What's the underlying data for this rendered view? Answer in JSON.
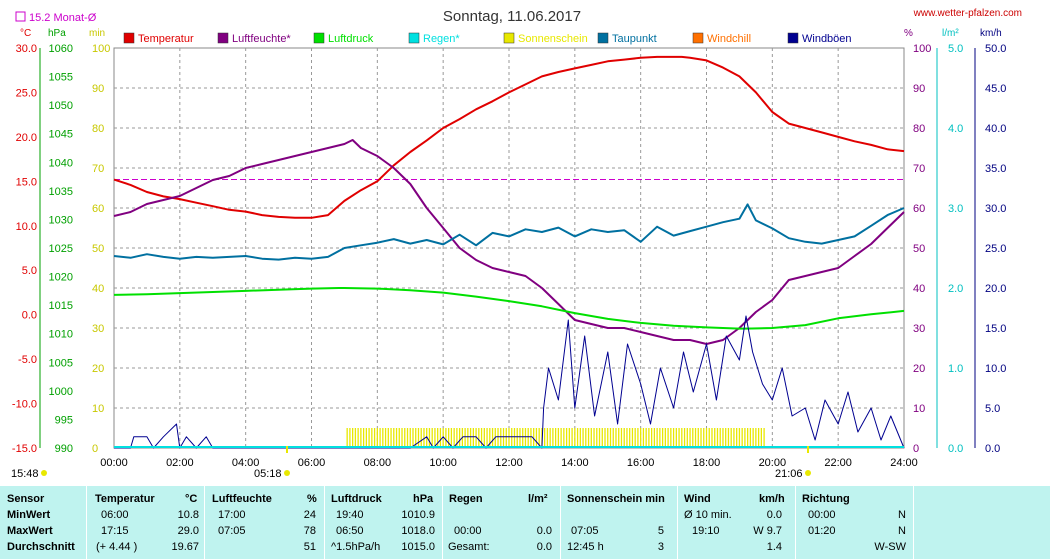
{
  "header": {
    "title": "Sonntag, 11.06.2017",
    "site": "www.wetter-pfalzen.com",
    "monthly_avg_label": "15.2 Monat-Ø"
  },
  "axis_units": {
    "temp": "°C",
    "pressure": "hPa",
    "sun": "min",
    "hum": "%",
    "rain": "l/m²",
    "wind": "km/h"
  },
  "legend": [
    {
      "name": "Temperatur",
      "color": "#e00000"
    },
    {
      "name": "Luftfeuchte*",
      "color": "#800080"
    },
    {
      "name": "Luftdruck",
      "color": "#00e000"
    },
    {
      "name": "Regen*",
      "color": "#00e0e0"
    },
    {
      "name": "Sonnenschein",
      "color": "#e8e800"
    },
    {
      "name": "Taupunkt",
      "color": "#0070a0"
    },
    {
      "name": "Windchill",
      "color": "#ff7000"
    },
    {
      "name": "Windböen",
      "color": "#000090"
    }
  ],
  "sun_events": {
    "left": "15:48",
    "sunrise": "05:18",
    "sunset": "21:06",
    "left_color": "#e8e800",
    "sunrise_color": "#e8e800",
    "sunset_color": "#e8e800"
  },
  "chart_data": {
    "type": "line",
    "x_tick_labels": [
      "00:00",
      "02:00",
      "04:00",
      "06:00",
      "08:00",
      "10:00",
      "12:00",
      "14:00",
      "16:00",
      "18:00",
      "20:00",
      "22:00",
      "24:00"
    ],
    "x_range_hours": [
      0,
      24
    ],
    "axes": {
      "temp": {
        "ticks": [
          "30.0",
          "25.0",
          "20.0",
          "15.0",
          "10.0",
          "5.0",
          "0.0",
          "-5.0",
          "-10.0",
          "-15.0"
        ],
        "range": [
          -15,
          30
        ],
        "color": "#e00000"
      },
      "pressure": {
        "ticks": [
          "1060",
          "1055",
          "1050",
          "1045",
          "1040",
          "1035",
          "1030",
          "1025",
          "1020",
          "1015",
          "1010",
          "1005",
          "1000",
          "995",
          "990"
        ],
        "range": [
          990,
          1060
        ],
        "color": "#00a000"
      },
      "sun": {
        "ticks": [
          "100",
          "90",
          "80",
          "70",
          "60",
          "50",
          "40",
          "30",
          "20",
          "10",
          "0"
        ],
        "range": [
          0,
          100
        ],
        "color": "#c8c800"
      },
      "hum": {
        "ticks": [
          "100",
          "90",
          "80",
          "70",
          "60",
          "50",
          "40",
          "30",
          "20",
          "10",
          "0"
        ],
        "range": [
          0,
          100
        ],
        "color": "#800080"
      },
      "rain": {
        "ticks": [
          "5.0",
          "4.0",
          "3.0",
          "2.0",
          "1.0",
          "0.0"
        ],
        "range": [
          0,
          5
        ],
        "color": "#00c0c0"
      },
      "wind": {
        "ticks": [
          "50.0",
          "45.0",
          "40.0",
          "35.0",
          "30.0",
          "25.0",
          "20.0",
          "15.0",
          "10.0",
          "5.0",
          "0.0"
        ],
        "range": [
          0,
          50
        ],
        "color": "#000080"
      }
    },
    "monthly_avg_temp": 15.2,
    "series": [
      {
        "name": "Temperatur",
        "axis": "temp",
        "color": "#e00000",
        "x": [
          0,
          0.5,
          1,
          1.5,
          2,
          2.5,
          3,
          3.5,
          4,
          4.5,
          5,
          5.5,
          6,
          6.5,
          7,
          7.5,
          8,
          8.5,
          9,
          9.5,
          10,
          10.5,
          11,
          11.5,
          12,
          12.5,
          13,
          13.5,
          14,
          14.5,
          15,
          15.5,
          16,
          16.5,
          17,
          17.25,
          17.5,
          18,
          18.5,
          19,
          19.5,
          20,
          20.5,
          21,
          21.5,
          22,
          22.5,
          23,
          23.5,
          24
        ],
        "y": [
          15.2,
          14.6,
          13.8,
          13.3,
          13,
          12.6,
          12.2,
          11.8,
          11.6,
          11.2,
          11,
          10.9,
          10.9,
          11.2,
          12.8,
          14,
          15,
          16.8,
          18.3,
          19.6,
          21,
          22,
          23.1,
          24,
          25,
          25.9,
          26.8,
          27.3,
          27.7,
          28.1,
          28.5,
          28.7,
          28.9,
          29,
          29,
          29,
          28.9,
          28.6,
          27.8,
          26.8,
          25,
          22.8,
          21.5,
          21,
          20.5,
          20,
          19.5,
          19.1,
          18.6,
          18.4
        ]
      },
      {
        "name": "Luftfeuchte*",
        "axis": "hum",
        "color": "#800080",
        "x": [
          0,
          0.5,
          1,
          1.5,
          2,
          2.5,
          3,
          3.5,
          4,
          4.5,
          5,
          5.5,
          6,
          6.5,
          7,
          7.25,
          7.5,
          8,
          8.5,
          9,
          9.5,
          10,
          10.5,
          11,
          11.5,
          12,
          12.5,
          13,
          13.5,
          14,
          14.5,
          15,
          15.5,
          16,
          16.5,
          17,
          17.5,
          18,
          18.5,
          19,
          19.5,
          20,
          20.5,
          21,
          21.5,
          22,
          22.5,
          23,
          23.5,
          24
        ],
        "y": [
          58,
          59,
          61,
          62,
          63,
          65,
          67,
          68,
          70,
          71,
          72,
          73,
          74,
          75,
          76,
          77,
          75,
          73,
          70,
          66,
          60,
          55,
          50,
          47,
          45,
          44,
          43,
          40,
          36,
          32,
          31,
          30,
          30,
          29,
          28,
          27,
          27,
          26,
          27,
          30,
          34,
          37,
          42,
          43,
          44,
          45,
          48,
          51,
          55,
          59
        ]
      },
      {
        "name": "Luftdruck",
        "axis": "pressure",
        "color": "#00e000",
        "x": [
          0,
          1,
          2,
          3,
          4,
          5,
          6,
          6.83,
          7,
          8,
          9,
          10,
          11,
          12,
          13,
          14,
          15,
          16,
          17,
          18,
          19,
          19.2,
          20,
          21,
          22,
          23,
          24
        ],
        "y": [
          1016.8,
          1016.9,
          1017.1,
          1017.3,
          1017.5,
          1017.7,
          1017.9,
          1018.0,
          1018.0,
          1017.9,
          1017.6,
          1017.2,
          1016.5,
          1015.7,
          1014.8,
          1013.6,
          1012.6,
          1011.9,
          1011.4,
          1011.1,
          1010.9,
          1010.9,
          1011.0,
          1011.5,
          1012.7,
          1013.4,
          1014.0
        ]
      },
      {
        "name": "Taupunkt",
        "axis": "temp",
        "color": "#0070a0",
        "x": [
          0,
          0.5,
          1,
          1.5,
          2,
          2.5,
          3,
          3.5,
          4,
          4.5,
          5,
          5.5,
          6,
          6.5,
          7,
          7.5,
          8,
          8.5,
          9,
          9.5,
          10,
          10.5,
          11,
          11.5,
          12,
          12.5,
          13,
          13.5,
          14,
          14.5,
          15,
          15.5,
          16,
          16.5,
          17,
          17.5,
          18,
          18.5,
          19,
          19.25,
          19.5,
          20,
          20.5,
          21,
          21.5,
          22,
          22.5,
          23,
          23.5,
          24
        ],
        "y": [
          6.6,
          6.4,
          6.8,
          6.5,
          6.3,
          6.5,
          6.4,
          6.5,
          6.6,
          6.3,
          6.2,
          6.4,
          6.3,
          6.5,
          7.5,
          7.8,
          8.1,
          8.5,
          8.0,
          8.4,
          7.9,
          9.0,
          7.8,
          9.2,
          8.8,
          9.6,
          9.3,
          9.8,
          8.8,
          9.6,
          9.3,
          9.5,
          8.2,
          9.9,
          8.9,
          9.4,
          9.9,
          10.4,
          10.8,
          12.4,
          10.6,
          9.7,
          8.6,
          8.2,
          8.0,
          8.4,
          8.8,
          10.0,
          11.2,
          12.0
        ]
      },
      {
        "name": "Windböen",
        "axis": "wind",
        "color": "#000090",
        "x": [
          0,
          0.5,
          0.6,
          1,
          1.2,
          1.5,
          1.9,
          2,
          2.2,
          2.5,
          2.8,
          3,
          3.5,
          4,
          5,
          6,
          7,
          8,
          9,
          9.5,
          9.7,
          10,
          10.3,
          10.6,
          11,
          11.3,
          11.6,
          12,
          12.3,
          12.7,
          13,
          13.05,
          13.2,
          13.5,
          13.8,
          14,
          14.3,
          14.6,
          15,
          15.3,
          15.6,
          16,
          16.3,
          16.6,
          17,
          17.3,
          17.6,
          18,
          18.3,
          18.6,
          19,
          19.2,
          19.4,
          19.7,
          20,
          20.3,
          20.6,
          21,
          21.3,
          21.6,
          22,
          22.3,
          22.6,
          23,
          23.3,
          23.6,
          24
        ],
        "y": [
          0,
          0,
          1.4,
          1.4,
          0,
          1.4,
          3,
          0,
          1.4,
          0,
          1.4,
          0,
          0,
          0,
          0,
          0,
          0,
          0,
          0,
          1.4,
          0,
          1.4,
          0,
          1.4,
          1.4,
          0,
          1.4,
          1.4,
          1.4,
          1.4,
          0,
          5,
          10,
          6,
          16,
          5,
          14,
          4,
          12,
          3,
          13,
          8,
          3,
          10,
          5,
          12,
          7,
          13,
          6,
          14,
          11,
          16.5,
          12,
          8,
          6,
          10,
          4,
          5,
          1,
          6,
          3,
          7,
          2,
          5,
          1,
          4,
          0
        ]
      }
    ],
    "sunshine_bars": {
      "start": "07:05",
      "end": "19:45",
      "value": 5,
      "axis": "sun",
      "color": "#e8e800"
    }
  },
  "stats": {
    "columns": [
      {
        "label": "Sensor",
        "unit": ""
      },
      {
        "label": "Temperatur",
        "unit": "°C"
      },
      {
        "label": "Luftfeuchte",
        "unit": "%"
      },
      {
        "label": "Luftdruck",
        "unit": "hPa"
      },
      {
        "label": "Regen",
        "unit": "l/m²"
      },
      {
        "label": "Sonnenschein min",
        "unit": ""
      },
      {
        "label": "Wind",
        "unit": "km/h"
      },
      {
        "label": "Richtung",
        "unit": ""
      }
    ],
    "rows": [
      {
        "label": "MinWert",
        "temp_time": "06:00",
        "temp_val": "10.8",
        "hum_time": "17:00",
        "hum_val": "24",
        "press_time": "19:40",
        "press_val": "1010.9",
        "rain_time": "",
        "rain_val": "",
        "sun_time": "",
        "sun_val": "",
        "wind_time": "Ø 10 min.",
        "wind_val": "0.0",
        "dir_time": "00:00",
        "dir_val": "N"
      },
      {
        "label": "MaxWert",
        "temp_time": "17:15",
        "temp_val": "29.0",
        "hum_time": "07:05",
        "hum_val": "78",
        "press_time": "06:50",
        "press_val": "1018.0",
        "rain_time": "00:00",
        "rain_val": "0.0",
        "sun_time": "07:05",
        "sun_val": "5",
        "wind_time": "19:10",
        "wind_val": "W 9.7",
        "dir_time": "01:20",
        "dir_val": "N"
      },
      {
        "label": "Durchschnitt",
        "temp_time": "(+ 4.44 )",
        "temp_val": "19.67",
        "hum_time": "",
        "hum_val": "51",
        "press_time": "^1.5hPa/h",
        "press_val": "1015.0",
        "rain_time": "Gesamt:",
        "rain_val": "0.0",
        "sun_time": "12:45 h",
        "sun_val": "3",
        "wind_time": "",
        "wind_val": "1.4",
        "dir_time": "",
        "dir_val": "W-SW"
      }
    ]
  }
}
